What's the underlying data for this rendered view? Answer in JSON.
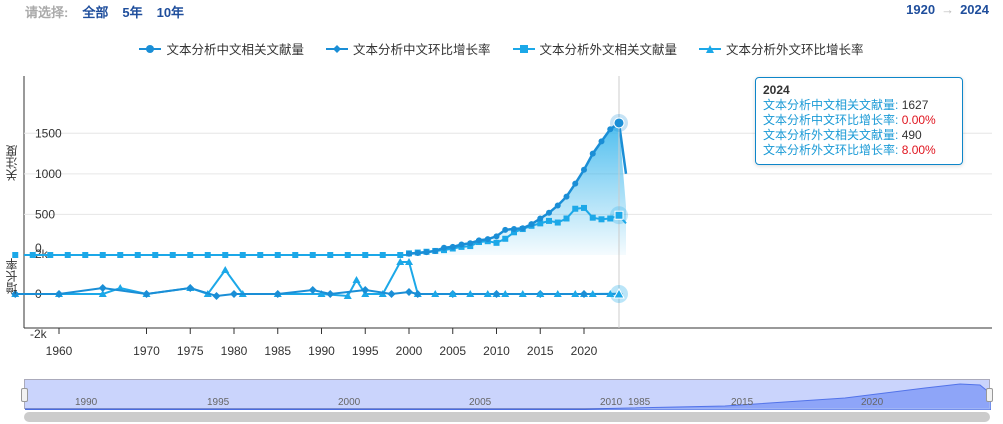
{
  "filter": {
    "label": "请选择:",
    "options": [
      "全部",
      "5年",
      "10年"
    ]
  },
  "range": {
    "start": "1920",
    "arrow": "→",
    "end": "2024"
  },
  "colors": {
    "cn_count": "#1a8ed6",
    "cn_rate": "#1a8ed6",
    "en_count": "#1ca8e8",
    "en_rate": "#1ca8e8",
    "area_top": "#31b3ec"
  },
  "chart_data": {
    "type": "line",
    "x_ticks": [
      1960,
      1970,
      1975,
      1980,
      1985,
      1990,
      1995,
      2000,
      2005,
      2010,
      2015,
      2020
    ],
    "x_tick_positions_years": [
      1960,
      1970,
      1975,
      1980,
      1985,
      1990,
      1995,
      2000,
      2005,
      2010,
      2015,
      2020
    ],
    "top_panel": {
      "ylabel": "关注度",
      "yticks": [
        500,
        1000,
        1500
      ],
      "ylim": [
        0,
        1900
      ],
      "series": [
        {
          "name": "文本分析中文相关文献量",
          "x": [
            2000,
            2001,
            2002,
            2003,
            2004,
            2005,
            2006,
            2007,
            2008,
            2009,
            2010,
            2011,
            2012,
            2013,
            2014,
            2015,
            2016,
            2017,
            2018,
            2019,
            2020,
            2021,
            2022,
            2023,
            2024
          ],
          "values": [
            15,
            25,
            35,
            50,
            90,
            100,
            130,
            145,
            180,
            195,
            230,
            310,
            320,
            330,
            380,
            450,
            520,
            610,
            720,
            880,
            1050,
            1250,
            1400,
            1550,
            1627
          ]
        },
        {
          "name": "文本分析外文相关文献量",
          "x": [
            2000,
            2001,
            2002,
            2003,
            2004,
            2005,
            2006,
            2007,
            2008,
            2009,
            2010,
            2011,
            2012,
            2013,
            2014,
            2015,
            2016,
            2017,
            2018,
            2019,
            2020,
            2021,
            2022,
            2023,
            2024
          ],
          "values": [
            20,
            30,
            40,
            50,
            60,
            80,
            100,
            110,
            160,
            170,
            150,
            200,
            280,
            320,
            360,
            390,
            420,
            400,
            450,
            570,
            580,
            460,
            440,
            450,
            490
          ]
        }
      ]
    },
    "bottom_panel": {
      "ylabel": "增长率",
      "yticks": [
        "2k",
        "0",
        "-2k"
      ],
      "ylim": [
        -2000,
        2000
      ],
      "series": [
        {
          "name": "文本分析中文环比增长率",
          "x": [
            1955,
            1960,
            1965,
            1970,
            1975,
            1978,
            1980,
            1985,
            1989,
            1991,
            1995,
            1998,
            2000,
            2001,
            2005,
            2010,
            2015,
            2020,
            2024
          ],
          "values": [
            0,
            0,
            300,
            0,
            300,
            -100,
            0,
            0,
            200,
            0,
            200,
            0,
            100,
            0,
            0,
            0,
            0,
            0,
            0
          ]
        },
        {
          "name": "文本分析外文环比增长率",
          "x": [
            1955,
            1960,
            1965,
            1967,
            1970,
            1975,
            1977,
            1979,
            1981,
            1985,
            1990,
            1993,
            1994,
            1995,
            1997,
            1999,
            2000,
            2001,
            2005,
            2010,
            2015,
            2020,
            2024
          ],
          "values": [
            0,
            0,
            0,
            300,
            0,
            300,
            0,
            1200,
            0,
            0,
            0,
            -100,
            700,
            0,
            0,
            1600,
            1600,
            0,
            0,
            0,
            0,
            0,
            8
          ]
        }
      ]
    }
  },
  "legend": [
    {
      "label": "文本分析中文相关文献量",
      "marker": "circle"
    },
    {
      "label": "文本分析中文环比增长率",
      "marker": "diamond"
    },
    {
      "label": "文本分析外文相关文献量",
      "marker": "square"
    },
    {
      "label": "文本分析外文环比增长率",
      "marker": "triangle"
    }
  ],
  "tooltip": {
    "year": "2024",
    "rows": [
      {
        "key": "文本分析中文相关文献量:",
        "value": "1627",
        "red": false
      },
      {
        "key": "文本分析中文环比增长率:",
        "value": "0.00%",
        "red": true
      },
      {
        "key": "文本分析外文相关文献量:",
        "value": "490",
        "red": false
      },
      {
        "key": "文本分析外文环比增长率:",
        "value": "8.00%",
        "red": true
      }
    ]
  },
  "navigator": {
    "labels": [
      "1990",
      "1995",
      "2000",
      "2005",
      "2010",
      "1985",
      "2015",
      "2020"
    ]
  }
}
